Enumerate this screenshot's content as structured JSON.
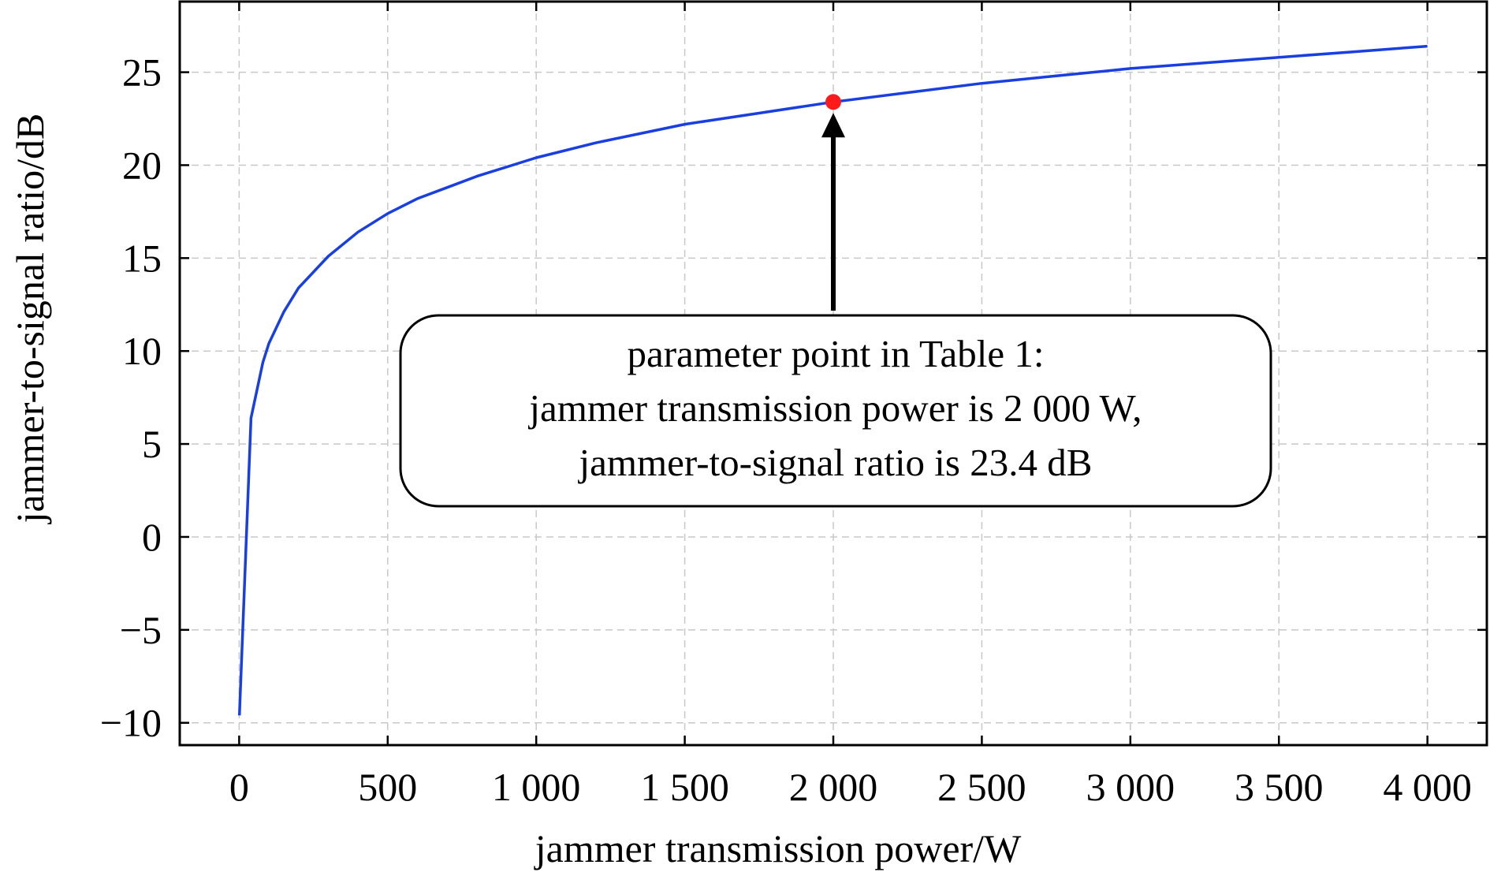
{
  "chart_data": {
    "type": "line",
    "title": "",
    "xlabel": "jammer transmission power/W",
    "ylabel": "jammer-to-signal ratio/dB",
    "xlim": [
      -200,
      4200
    ],
    "ylim": [
      -11.2,
      28.8
    ],
    "x_ticks": [
      0,
      500,
      1000,
      1500,
      2000,
      2500,
      3000,
      3500,
      4000
    ],
    "x_tick_labels": [
      "0",
      "500",
      "1 000",
      "1 500",
      "2 000",
      "2 500",
      "3 000",
      "3 500",
      "4 000"
    ],
    "y_ticks": [
      -10,
      -5,
      0,
      5,
      10,
      15,
      20,
      25
    ],
    "y_tick_labels": [
      "−10",
      "−5",
      "0",
      "5",
      "10",
      "15",
      "20",
      "25"
    ],
    "grid": true,
    "series": [
      {
        "color": "#1a3fe0",
        "x": [
          1,
          40,
          80,
          100,
          150,
          200,
          300,
          400,
          500,
          600,
          700,
          800,
          1000,
          1200,
          1500,
          1750,
          2000,
          2250,
          2500,
          2750,
          3000,
          3250,
          3500,
          3750,
          4000
        ],
        "y": [
          -9.6,
          6.4,
          9.4,
          10.4,
          12.1,
          13.4,
          15.1,
          16.4,
          17.4,
          18.2,
          18.8,
          19.4,
          20.4,
          21.2,
          22.2,
          22.8,
          23.4,
          23.9,
          24.4,
          24.8,
          25.2,
          25.5,
          25.8,
          26.1,
          26.4
        ]
      }
    ],
    "highlight_point": {
      "x": 2000,
      "y": 23.4,
      "color": "#ff1a1a"
    },
    "annotation": {
      "lines": [
        "parameter point in Table 1:",
        "jammer transmission power is 2 000 W,",
        "jammer-to-signal ratio is 23.4 dB"
      ]
    }
  }
}
